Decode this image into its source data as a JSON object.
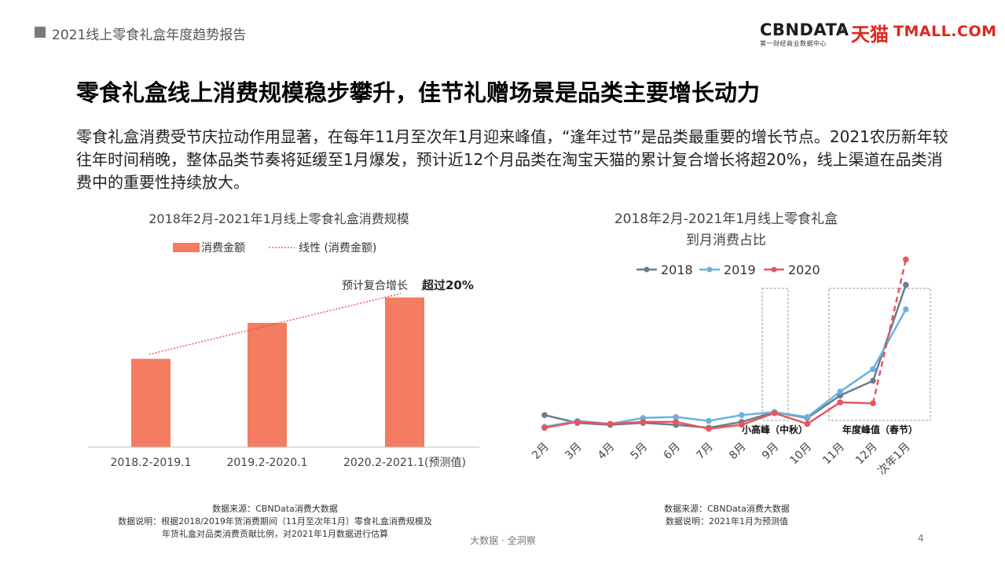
{
  "header": {
    "report_title": "2021线上零食礼盒年度趋势报告"
  },
  "logos": {
    "cbn_main": "CBNDATA",
    "cbn_sub": "第一财经商业数据中心",
    "times": "×",
    "tmall_cn": "天猫",
    "tmall_en": "TMALL.COM"
  },
  "headline": "零食礼盒线上消费规模稳步攀升，佳节礼赠场景是品类主要增长动力",
  "description": "零食礼盒消费受节庆拉动作用显著，在每年11月至次年1月迎来峰值，“逢年过节”是品类最重要的增长节点。2021农历新年较往年时间稍晚，整体品类节奏将延缓至1月爆发，预计近12个月品类在淘宝天猫的累计复合增长将超20%，线上渠道在品类消费中的重要性持续放大。",
  "colors": {
    "bar": "#f47c60",
    "trend": "#e6454a",
    "s2018": "#6d7b8d",
    "s2019": "#6ab2e0",
    "s2020": "#e8555f"
  },
  "chart_data": [
    {
      "type": "bar",
      "title": "2018年2月-2021年1月线上零食礼盒消费规模",
      "categories": [
        "2018.2-2019.1",
        "2019.2-2020.1",
        "2020.2-2021.1(预测值)"
      ],
      "series": [
        {
          "name": "消费金额",
          "values": [
            0.59,
            0.83,
            1.0
          ]
        }
      ],
      "trendline": {
        "name": "线性 (消费金额)"
      },
      "annotation": {
        "prefix": "预计复合增长",
        "highlight": "超过20%"
      },
      "ylim": [
        0,
        1.05
      ],
      "grid": false,
      "legend": "top"
    },
    {
      "type": "line",
      "title_line1": "2018年2月-2021年1月线上零食礼盒",
      "title_line2": "到月消费占比",
      "categories": [
        "2月",
        "3月",
        "4月",
        "5月",
        "6月",
        "7月",
        "8月",
        "9月",
        "10月",
        "11月",
        "12月",
        "次年1月"
      ],
      "series": [
        {
          "name": "2018",
          "values": [
            3.6,
            2.8,
            2.6,
            2.8,
            2.6,
            2.3,
            2.9,
            3.9,
            3.3,
            5.6,
            7.1,
            16.9
          ]
        },
        {
          "name": "2019",
          "values": [
            2.4,
            3.0,
            2.7,
            3.3,
            3.4,
            3.0,
            3.6,
            3.9,
            3.4,
            6.0,
            8.3,
            14.4
          ]
        },
        {
          "name": "2020",
          "values": [
            2.3,
            2.9,
            2.7,
            2.9,
            2.9,
            2.2,
            2.6,
            3.8,
            2.7,
            4.9,
            4.8,
            19.5
          ]
        }
      ],
      "dashed_last_segment_series": "2020",
      "highlight_boxes": [
        {
          "label": "小高峰（中秋）",
          "from_category": "9月",
          "to_category": "9月"
        },
        {
          "label": "年度峰值（春节）",
          "from_category": "11月",
          "to_category": "次年1月"
        }
      ],
      "ylim": [
        0,
        20
      ],
      "grid": false,
      "legend": "top"
    }
  ],
  "sources": {
    "left": [
      "数据来源：CBNData消费大数据",
      "数据说明：根据2018/2019年货消费期间（11月至次年1月）零食礼盒消费规模及",
      "年货礼盒对品类消费贡献比例，对2021年1月数据进行估算"
    ],
    "right": [
      "数据来源：CBNData消费大数据",
      "数据说明：2021年1月为预测值"
    ]
  },
  "footer": {
    "text": "大数据 · 全洞察",
    "page": "4"
  }
}
